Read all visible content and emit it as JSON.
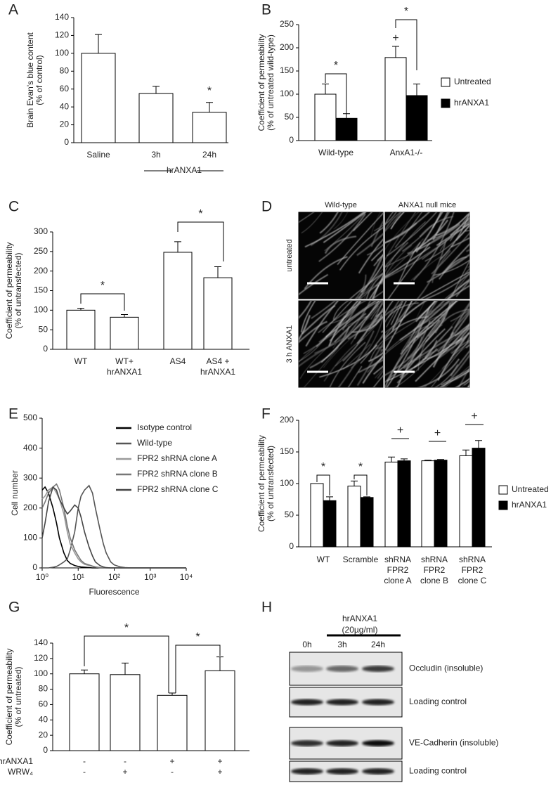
{
  "chart_data": [
    {
      "panel": "A",
      "type": "bar",
      "ylabel": [
        "Brain Evan's blue content",
        "(% of control)"
      ],
      "categories": [
        "Saline",
        "3h",
        "24h"
      ],
      "values": [
        100,
        55,
        34
      ],
      "errors": [
        21,
        8,
        11
      ],
      "color": "#ffffff",
      "edgecolor": "#000000",
      "ylim": [
        0,
        140
      ],
      "yticks": [
        0,
        20,
        40,
        60,
        80,
        100,
        120,
        140
      ],
      "group_label": "hrANXA1",
      "significance": [
        "*"
      ]
    },
    {
      "panel": "B",
      "type": "grouped_bar",
      "ylabel": [
        "Coefficient of permeability",
        "(% of untreated wild-type)"
      ],
      "categories": [
        "Wild-type",
        "AnxA1-/-"
      ],
      "series": [
        {
          "name": "Untreated",
          "color": "#ffffff",
          "values": [
            100,
            179
          ],
          "errors": [
            22,
            24
          ]
        },
        {
          "name": "hrANXA1",
          "color": "#000000",
          "values": [
            48,
            97
          ],
          "errors": [
            10,
            25
          ]
        }
      ],
      "edgecolor": "#000000",
      "ylim": [
        0,
        250
      ],
      "yticks": [
        0,
        50,
        100,
        150,
        200,
        250
      ],
      "legend": "right",
      "significance": [
        "*",
        "*",
        "+"
      ]
    },
    {
      "panel": "C",
      "type": "bar",
      "ylabel": [
        "Coefficient of permeability",
        "(% of untransfected)"
      ],
      "categories": [
        "WT",
        [
          "WT+",
          "hrANXA1"
        ],
        "AS4",
        [
          "AS4 +",
          "hrANXA1"
        ]
      ],
      "values": [
        100,
        82,
        248,
        183
      ],
      "errors": [
        5,
        7,
        27,
        28
      ],
      "color": "#ffffff",
      "edgecolor": "#000000",
      "ylim": [
        0,
        300
      ],
      "yticks": [
        0,
        50,
        100,
        150,
        200,
        250,
        300
      ],
      "significance": [
        "*",
        "*"
      ]
    },
    {
      "panel": "E",
      "type": "line",
      "xlabel": "Fluorescence",
      "ylabel": "Cell number",
      "xscale": "log",
      "x": [
        1,
        1.2,
        1.5,
        2,
        2.5,
        3,
        4,
        5,
        6,
        8,
        10,
        12,
        15,
        20,
        25,
        30,
        40,
        50,
        60,
        80,
        100,
        150,
        200,
        300,
        1000,
        10000
      ],
      "series": [
        {
          "name": "Isotype control",
          "color": "#000000",
          "values": [
            260,
            270,
            250,
            200,
            150,
            100,
            50,
            25,
            15,
            8,
            5,
            3,
            2,
            1,
            0,
            0,
            0,
            0,
            0,
            0,
            0,
            0,
            0,
            0,
            0,
            0
          ]
        },
        {
          "name": "Wild-type",
          "color": "#555555",
          "values": [
            0,
            0,
            0,
            2,
            5,
            10,
            20,
            30,
            60,
            120,
            200,
            240,
            260,
            275,
            250,
            200,
            130,
            80,
            50,
            20,
            10,
            3,
            1,
            0,
            0,
            0
          ]
        },
        {
          "name": "FPR2 shRNA clone A",
          "color": "#999999",
          "values": [
            230,
            240,
            260,
            270,
            250,
            230,
            180,
            120,
            80,
            50,
            30,
            20,
            12,
            8,
            5,
            3,
            1,
            0,
            0,
            0,
            0,
            0,
            0,
            0,
            0,
            0
          ]
        },
        {
          "name": "FPR2 shRNA clone B",
          "color": "#777777",
          "values": [
            200,
            220,
            250,
            270,
            280,
            260,
            200,
            140,
            100,
            60,
            40,
            25,
            15,
            10,
            6,
            3,
            1,
            0,
            0,
            0,
            0,
            0,
            0,
            0,
            0,
            0
          ]
        },
        {
          "name": "FPR2 shRNA clone C",
          "color": "#444444",
          "values": [
            100,
            150,
            220,
            270,
            260,
            230,
            200,
            180,
            190,
            210,
            200,
            170,
            120,
            70,
            40,
            20,
            8,
            3,
            1,
            0,
            0,
            0,
            0,
            0,
            0,
            0
          ]
        }
      ],
      "xlim": [
        1,
        10000
      ],
      "xticks": [
        {
          "value": 1,
          "label": "10⁰"
        },
        {
          "value": 10,
          "label": "10¹"
        },
        {
          "value": 100,
          "label": "10²"
        },
        {
          "value": 1000,
          "label": "10³"
        },
        {
          "value": 10000,
          "label": "10⁴"
        }
      ],
      "ylim": [
        0,
        500
      ],
      "yticks": [
        0,
        100,
        200,
        300,
        400,
        500
      ],
      "legend": "upper right"
    },
    {
      "panel": "F",
      "type": "grouped_bar",
      "ylabel": [
        "Coefficient of permeability",
        "(% of untransfected)"
      ],
      "categories": [
        "WT",
        "Scramble",
        [
          "shRNA",
          "FPR2",
          "clone A"
        ],
        [
          "shRNA",
          "FPR2",
          "clone B"
        ],
        [
          "shRNA",
          "FPR2",
          "clone C"
        ]
      ],
      "series": [
        {
          "name": "Untreated",
          "color": "#ffffff",
          "values": [
            100,
            96,
            134,
            136,
            144
          ],
          "errors": [
            null,
            8,
            8,
            1,
            9
          ]
        },
        {
          "name": "hrANXA1",
          "color": "#000000",
          "values": [
            73,
            78,
            136,
            137,
            156
          ],
          "errors": [
            6,
            1,
            3,
            1,
            12
          ]
        }
      ],
      "edgecolor": "#000000",
      "ylim": [
        0,
        200
      ],
      "yticks": [
        0,
        50,
        100,
        150,
        200
      ],
      "legend": "right",
      "significance": [
        "*",
        "*",
        "+",
        "+",
        "+"
      ]
    },
    {
      "panel": "G",
      "type": "bar",
      "ylabel": [
        "Coefficient of permeability",
        "(% of untreated)"
      ],
      "values": [
        100,
        99,
        72,
        104
      ],
      "errors": [
        5,
        15,
        3,
        18
      ],
      "color": "#ffffff",
      "edgecolor": "#000000",
      "conditions": [
        {
          "name": "hrANXA1",
          "signs": [
            "-",
            "-",
            "+",
            "+"
          ]
        },
        {
          "name": "WRW₄",
          "signs": [
            "-",
            "+",
            "-",
            "+"
          ]
        }
      ],
      "ylim": [
        0,
        140
      ],
      "yticks": [
        0,
        20,
        40,
        60,
        80,
        100,
        120,
        140
      ],
      "significance": [
        "*",
        "*"
      ]
    }
  ],
  "micrographs": {
    "panel": "D",
    "columns": [
      "Wild-type",
      "ANXA1 null mice"
    ],
    "rows": [
      "untreated",
      "3 h ANXA1"
    ]
  },
  "blot": {
    "panel": "H",
    "treatment": "hrANXA1",
    "dose": "(20µg/ml)",
    "lanes": [
      "0h",
      "3h",
      "24h"
    ],
    "bands": [
      "Occludin (insoluble)",
      "Loading control",
      "VE-Cadherin (insoluble)",
      "Loading control"
    ]
  }
}
